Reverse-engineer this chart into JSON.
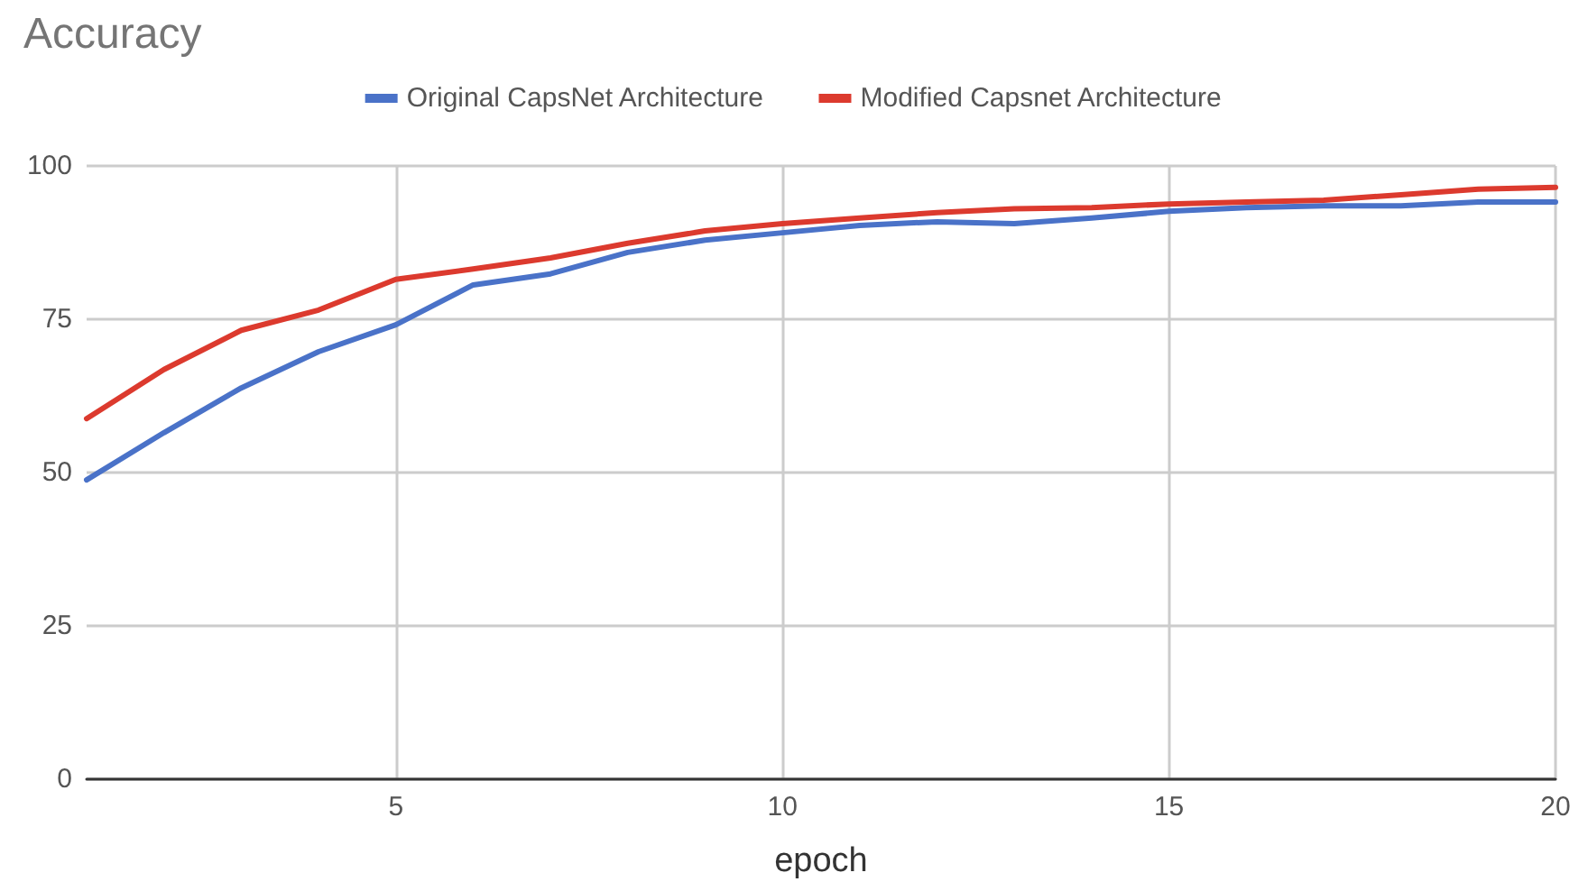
{
  "chart_data": {
    "type": "line",
    "title": "Accuracy",
    "xlabel": "epoch",
    "x": [
      1,
      2,
      3,
      4,
      5,
      6,
      7,
      8,
      9,
      10,
      11,
      12,
      13,
      14,
      15,
      16,
      17,
      18,
      19,
      20
    ],
    "series": [
      {
        "name": "Original CapsNet Architecture",
        "color": "#4a72c8",
        "values": [
          48.8,
          56.5,
          63.8,
          69.7,
          74.1,
          80.6,
          82.4,
          85.9,
          87.9,
          89.1,
          90.3,
          90.9,
          90.6,
          91.5,
          92.6,
          93.2,
          93.5,
          93.5,
          94.1,
          94.1
        ]
      },
      {
        "name": "Modified Capsnet Architecture",
        "color": "#dc3a2e",
        "values": [
          58.8,
          66.8,
          73.2,
          76.5,
          81.5,
          83.2,
          85,
          87.4,
          89.4,
          90.6,
          91.5,
          92.4,
          93,
          93.2,
          93.8,
          94.1,
          94.4,
          95.3,
          96.2,
          96.5
        ]
      }
    ],
    "xlim": [
      1,
      20
    ],
    "xticks": [
      5,
      10,
      15,
      20
    ],
    "ylim": [
      0,
      100
    ],
    "yticks": [
      0,
      25,
      50,
      75,
      100
    ],
    "grid": true,
    "legend": "top",
    "marker": "none",
    "line_style": "solid"
  }
}
